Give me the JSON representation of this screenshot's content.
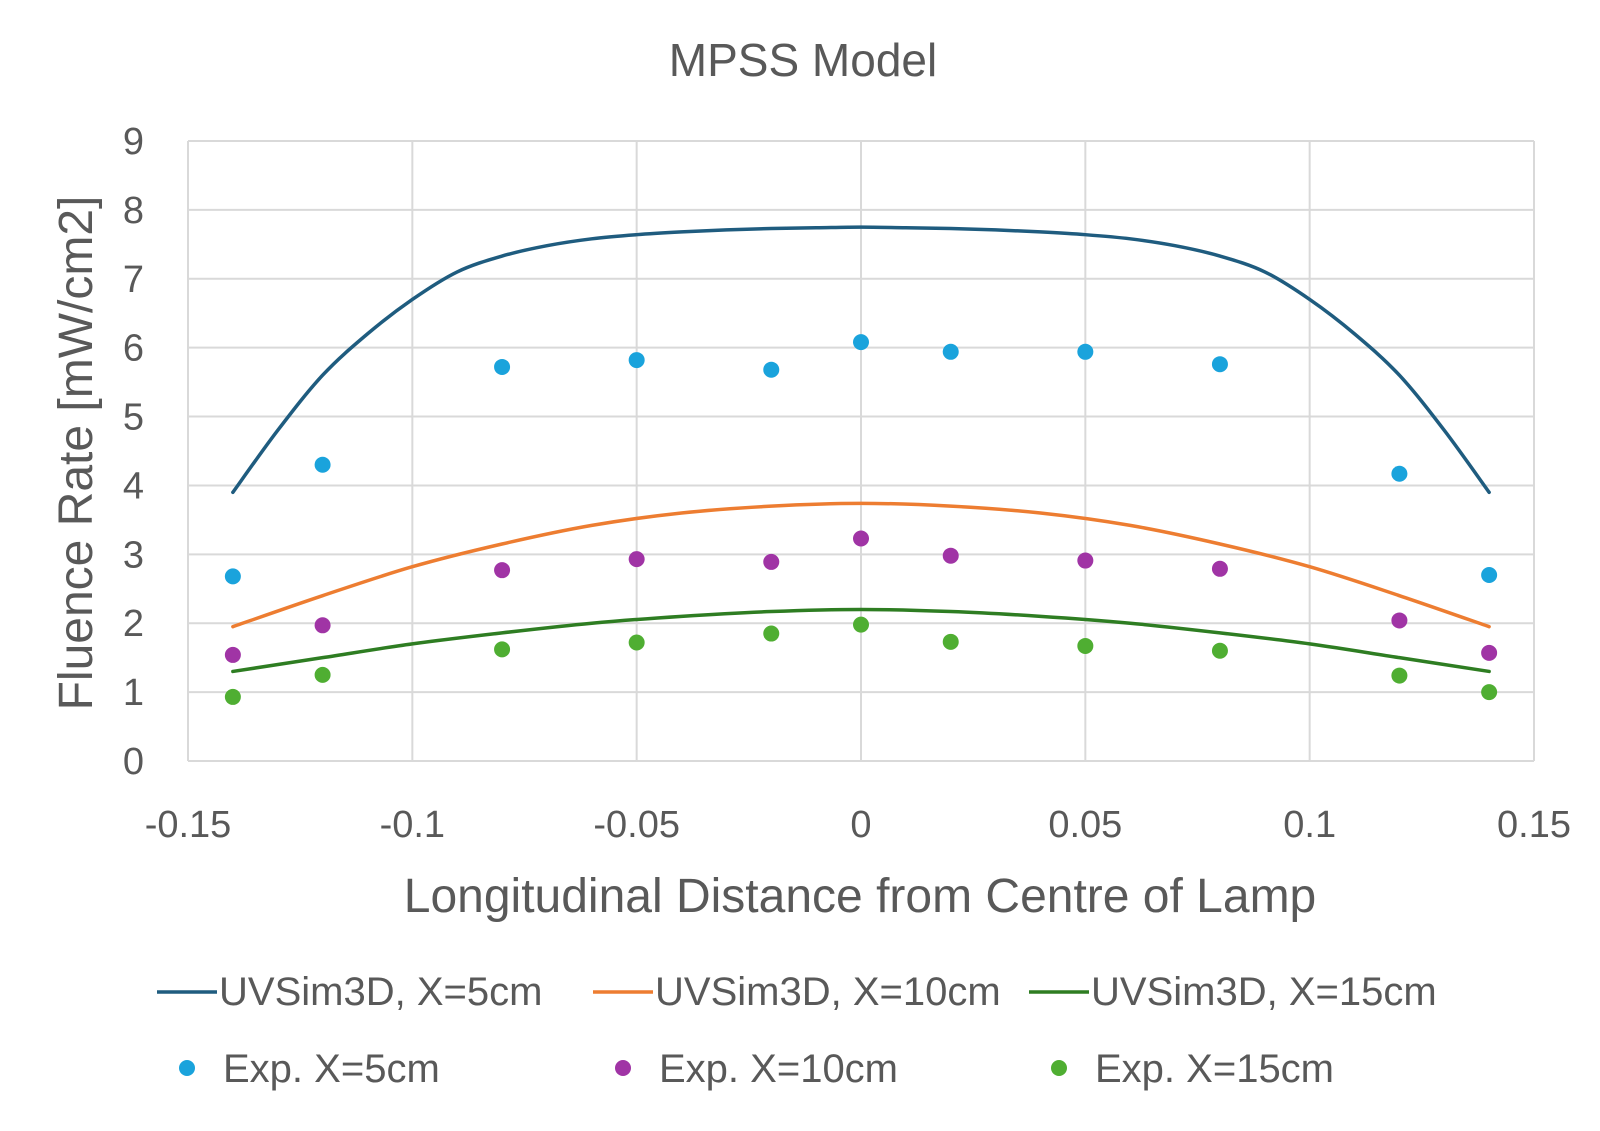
{
  "chart_data": {
    "type": "scatter",
    "title": "MPSS Model",
    "xlabel": "Longitudinal Distance from Centre of Lamp",
    "ylabel": "Fluence Rate [mW/cm2]",
    "xlim": [
      -0.15,
      0.15
    ],
    "ylim": [
      0,
      9
    ],
    "x_ticks": [
      -0.15,
      -0.1,
      -0.05,
      0,
      0.05,
      0.1,
      0.15
    ],
    "x_tick_labels": [
      "-0.15",
      "-0.1",
      "-0.05",
      "0",
      "0.05",
      "0.1",
      "0.15"
    ],
    "y_ticks": [
      0,
      1,
      2,
      3,
      4,
      5,
      6,
      7,
      8,
      9
    ],
    "y_tick_labels": [
      "0",
      "1",
      "2",
      "3",
      "4",
      "5",
      "6",
      "7",
      "8",
      "9"
    ],
    "grid": true,
    "legend_position": "bottom",
    "series": [
      {
        "name": "UVSim3D, X=5cm",
        "kind": "line",
        "color": "#1f5c7f",
        "x": [
          -0.14,
          -0.13,
          -0.12,
          -0.11,
          -0.1,
          -0.09,
          -0.08,
          -0.07,
          -0.06,
          -0.05,
          -0.04,
          -0.03,
          -0.02,
          -0.01,
          0,
          0.01,
          0.02,
          0.03,
          0.04,
          0.05,
          0.06,
          0.07,
          0.08,
          0.09,
          0.1,
          0.11,
          0.12,
          0.13,
          0.14
        ],
        "y": [
          3.9,
          4.8,
          5.6,
          6.2,
          6.7,
          7.1,
          7.33,
          7.48,
          7.58,
          7.64,
          7.68,
          7.71,
          7.73,
          7.74,
          7.75,
          7.74,
          7.73,
          7.71,
          7.68,
          7.64,
          7.58,
          7.48,
          7.33,
          7.1,
          6.7,
          6.2,
          5.6,
          4.8,
          3.9
        ]
      },
      {
        "name": "UVSim3D, X=10cm",
        "kind": "line",
        "color": "#ed7d31",
        "x": [
          -0.14,
          -0.12,
          -0.1,
          -0.08,
          -0.06,
          -0.04,
          -0.02,
          0,
          0.02,
          0.04,
          0.06,
          0.08,
          0.1,
          0.12,
          0.14
        ],
        "y": [
          1.95,
          2.4,
          2.82,
          3.15,
          3.42,
          3.6,
          3.7,
          3.74,
          3.7,
          3.6,
          3.42,
          3.15,
          2.82,
          2.4,
          1.95
        ]
      },
      {
        "name": "UVSim3D, X=15cm",
        "kind": "line",
        "color": "#2e7d22",
        "x": [
          -0.14,
          -0.12,
          -0.1,
          -0.08,
          -0.06,
          -0.04,
          -0.02,
          0,
          0.02,
          0.04,
          0.06,
          0.08,
          0.1,
          0.12,
          0.14
        ],
        "y": [
          1.3,
          1.5,
          1.7,
          1.86,
          2.0,
          2.1,
          2.17,
          2.2,
          2.17,
          2.1,
          2.0,
          1.86,
          1.7,
          1.5,
          1.3
        ]
      },
      {
        "name": "Exp. X=5cm",
        "kind": "scatter",
        "color": "#1aa3dc",
        "x": [
          -0.14,
          -0.12,
          -0.08,
          -0.05,
          -0.02,
          0,
          0.02,
          0.05,
          0.08,
          0.12,
          0.14
        ],
        "y": [
          2.68,
          4.3,
          5.72,
          5.82,
          5.68,
          6.08,
          5.94,
          5.94,
          5.76,
          4.17,
          2.7
        ]
      },
      {
        "name": "Exp. X=10cm",
        "kind": "scatter",
        "color": "#a034a5",
        "x": [
          -0.14,
          -0.12,
          -0.08,
          -0.05,
          -0.02,
          0,
          0.02,
          0.05,
          0.08,
          0.12,
          0.14
        ],
        "y": [
          1.54,
          1.97,
          2.77,
          2.93,
          2.89,
          3.23,
          2.98,
          2.91,
          2.79,
          2.04,
          1.57
        ]
      },
      {
        "name": "Exp. X=15cm",
        "kind": "scatter",
        "color": "#4fae32",
        "x": [
          -0.14,
          -0.12,
          -0.08,
          -0.05,
          -0.02,
          0,
          0.02,
          0.05,
          0.08,
          0.12,
          0.14
        ],
        "y": [
          0.93,
          1.25,
          1.62,
          1.72,
          1.85,
          1.98,
          1.73,
          1.67,
          1.6,
          1.24,
          1.0
        ]
      }
    ]
  }
}
